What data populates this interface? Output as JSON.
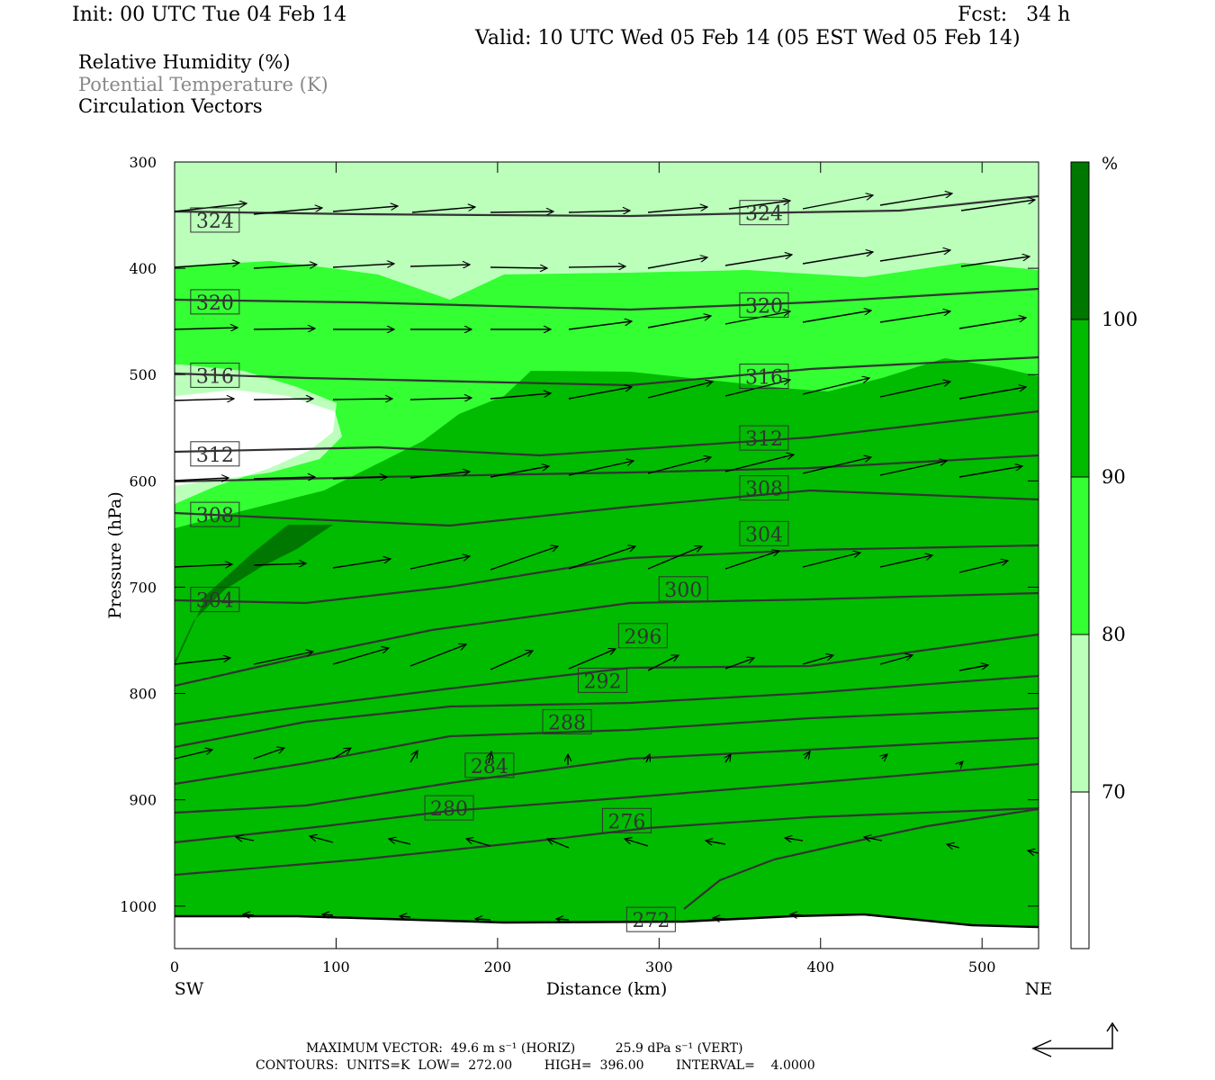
{
  "header": {
    "init": "Init: 00 UTC Tue 04 Feb 14",
    "fcst": "Fcst:   34 h",
    "valid": "Valid: 10 UTC Wed 05 Feb 14 (05 EST Wed 05 Feb 14)"
  },
  "legend": {
    "rh": "Relative Humidity (%)",
    "theta": "Potential Temperature (K)",
    "vectors": "Circulation Vectors"
  },
  "footer": {
    "max_vector": "MAXIMUM VECTOR:  49.6 m s⁻¹ (HORIZ)          25.9 dPa s⁻¹ (VERT)",
    "contours": "CONTOURS:  UNITS=K  LOW=  272.00        HIGH=  396.00        INTERVAL=    4.0000"
  },
  "colors": {
    "rh_70_80": "#bbffbb",
    "rh_80_90": "#33ff33",
    "rh_90_100": "#00bb00",
    "rh_100": "#007700",
    "rh_below_70": "#ffffff",
    "contour": "#333333"
  },
  "chart_data": {
    "type": "heatmap",
    "title": "Relative Humidity (%)",
    "xlabel": "Distance (km)",
    "ylabel": "Pressure (hPa)",
    "xlim": [
      0,
      535
    ],
    "ylim": [
      1040,
      300
    ],
    "x_ticks": [
      0,
      100,
      200,
      300,
      400,
      500
    ],
    "y_ticks": [
      300,
      400,
      500,
      600,
      700,
      800,
      900,
      1000
    ],
    "x_end_labels": {
      "left": "SW",
      "right": "NE"
    },
    "colorbar": {
      "unit": "%",
      "levels": [
        70,
        80,
        90,
        100
      ]
    },
    "contour_labels": [
      {
        "value": "324",
        "x": 25,
        "p": 355
      },
      {
        "value": "324",
        "x": 365,
        "p": 348
      },
      {
        "value": "320",
        "x": 25,
        "p": 432
      },
      {
        "value": "320",
        "x": 365,
        "p": 435
      },
      {
        "value": "316",
        "x": 25,
        "p": 501
      },
      {
        "value": "316",
        "x": 365,
        "p": 502
      },
      {
        "value": "312",
        "x": 25,
        "p": 575
      },
      {
        "value": "312",
        "x": 365,
        "p": 560
      },
      {
        "value": "308",
        "x": 25,
        "p": 632
      },
      {
        "value": "308",
        "x": 365,
        "p": 607
      },
      {
        "value": "304",
        "x": 25,
        "p": 712
      },
      {
        "value": "304",
        "x": 365,
        "p": 650
      },
      {
        "value": "300",
        "x": 315,
        "p": 702
      },
      {
        "value": "296",
        "x": 290,
        "p": 746
      },
      {
        "value": "292",
        "x": 265,
        "p": 788
      },
      {
        "value": "288",
        "x": 243,
        "p": 827
      },
      {
        "value": "284",
        "x": 195,
        "p": 868
      },
      {
        "value": "280",
        "x": 170,
        "p": 908
      },
      {
        "value": "276",
        "x": 280,
        "p": 920
      },
      {
        "value": "272",
        "x": 295,
        "p": 1013
      }
    ]
  }
}
